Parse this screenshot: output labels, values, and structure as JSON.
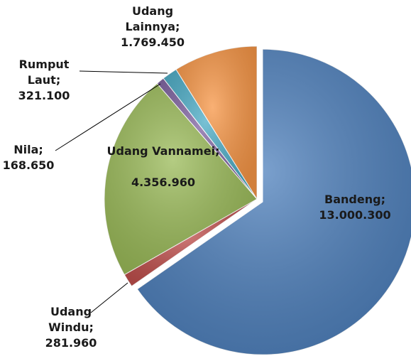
{
  "chart_data": {
    "type": "pie",
    "categories": [
      "Bandeng;",
      "Udang Windu;",
      "Udang Vannamei;",
      "Nila;",
      "Rumput Laut;",
      "Udang Lainnya;"
    ],
    "values": [
      13000300,
      281960,
      4356960,
      168650,
      321100,
      1769450
    ],
    "value_labels": [
      "13.000.300",
      "281.960",
      "4.356.960",
      "168.650",
      "321.100",
      "1.769.450"
    ],
    "colors": [
      "#4f81bd",
      "#c0504d",
      "#9bbb59",
      "#8064a2",
      "#4bacc6",
      "#f79646"
    ]
  }
}
